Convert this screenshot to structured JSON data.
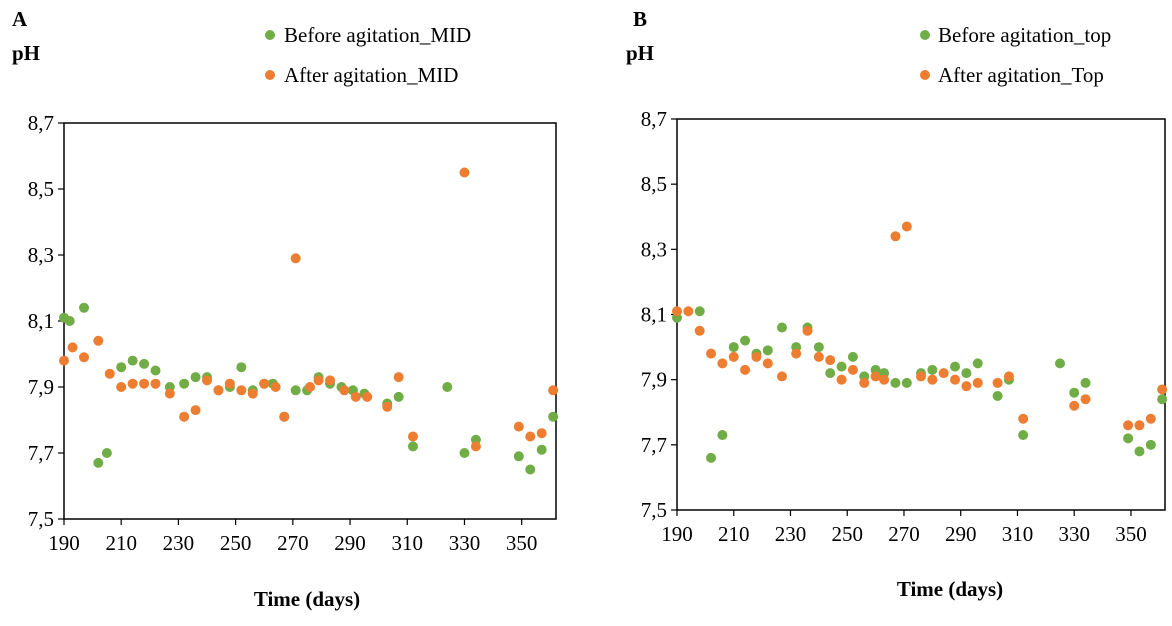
{
  "colors": {
    "series1": "#70AD47",
    "series2": "#ED7D31",
    "axis": "#000000"
  },
  "chart_data": [
    {
      "type": "scatter",
      "panel": "A",
      "ylabel": "pH",
      "xlabel": "Time (days)",
      "xlim": [
        190,
        362
      ],
      "ylim": [
        7.5,
        8.7
      ],
      "xticks": [
        "190",
        "210",
        "230",
        "250",
        "270",
        "290",
        "310",
        "330",
        "350"
      ],
      "yticks": [
        "7,5",
        "7,7",
        "7,9",
        "8,1",
        "8,3",
        "8,5",
        "8,7"
      ],
      "legend_position": "top-right",
      "series": [
        {
          "name": "Before agitation_MID",
          "x": [
            190,
            192,
            197,
            202,
            205,
            210,
            214,
            218,
            222,
            227,
            232,
            236,
            240,
            244,
            248,
            252,
            256,
            260,
            263,
            267,
            271,
            275,
            279,
            283,
            287,
            291,
            295,
            303,
            307,
            312,
            324,
            330,
            334,
            349,
            353,
            357,
            361
          ],
          "y": [
            8.11,
            8.1,
            8.14,
            7.67,
            7.7,
            7.96,
            7.98,
            7.97,
            7.95,
            7.9,
            7.91,
            7.93,
            7.93,
            7.89,
            7.9,
            7.96,
            7.89,
            7.91,
            7.91,
            7.81,
            7.89,
            7.89,
            7.93,
            7.91,
            7.9,
            7.89,
            7.88,
            7.85,
            7.87,
            7.72,
            7.9,
            7.7,
            7.74,
            7.69,
            7.65,
            7.71,
            7.81
          ]
        },
        {
          "name": "After agitation_MID",
          "x": [
            190,
            193,
            197,
            202,
            206,
            210,
            214,
            218,
            222,
            227,
            232,
            236,
            240,
            244,
            248,
            252,
            256,
            260,
            264,
            267,
            271,
            276,
            279,
            283,
            288,
            292,
            296,
            303,
            307,
            312,
            330,
            334,
            349,
            353,
            357,
            361
          ],
          "y": [
            7.98,
            8.02,
            7.99,
            8.04,
            7.94,
            7.9,
            7.91,
            7.91,
            7.91,
            7.88,
            7.81,
            7.83,
            7.92,
            7.89,
            7.91,
            7.89,
            7.88,
            7.91,
            7.9,
            7.81,
            8.29,
            7.9,
            7.92,
            7.92,
            7.89,
            7.87,
            7.87,
            7.84,
            7.93,
            7.75,
            8.55,
            7.72,
            7.78,
            7.75,
            7.76,
            7.89
          ]
        }
      ]
    },
    {
      "type": "scatter",
      "panel": "B",
      "ylabel": "pH",
      "xlabel": "Time (days)",
      "xlim": [
        190,
        362
      ],
      "ylim": [
        7.5,
        8.7
      ],
      "xticks": [
        "190",
        "210",
        "230",
        "250",
        "270",
        "290",
        "310",
        "330",
        "350"
      ],
      "yticks": [
        "7,5",
        "7,7",
        "7,9",
        "8,1",
        "8,3",
        "8,5",
        "8,7"
      ],
      "legend_position": "top-right",
      "series": [
        {
          "name": "Before agitation_top",
          "x": [
            190,
            198,
            202,
            206,
            210,
            214,
            218,
            222,
            227,
            232,
            236,
            240,
            244,
            248,
            252,
            256,
            260,
            263,
            267,
            271,
            276,
            280,
            288,
            292,
            296,
            303,
            307,
            312,
            325,
            330,
            334,
            349,
            353,
            357,
            361
          ],
          "y": [
            8.09,
            8.11,
            7.66,
            7.73,
            8.0,
            8.02,
            7.98,
            7.99,
            8.06,
            8.0,
            8.06,
            8.0,
            7.92,
            7.94,
            7.97,
            7.91,
            7.93,
            7.92,
            7.89,
            7.89,
            7.92,
            7.93,
            7.94,
            7.92,
            7.95,
            7.85,
            7.9,
            7.73,
            7.95,
            7.86,
            7.89,
            7.72,
            7.68,
            7.7,
            7.84
          ]
        },
        {
          "name": "After agitation_Top",
          "x": [
            190,
            194,
            198,
            202,
            206,
            210,
            214,
            218,
            222,
            227,
            232,
            236,
            240,
            244,
            248,
            252,
            256,
            260,
            263,
            267,
            271,
            276,
            280,
            284,
            288,
            292,
            296,
            303,
            307,
            312,
            330,
            334,
            349,
            353,
            357,
            361
          ],
          "y": [
            8.11,
            8.11,
            8.05,
            7.98,
            7.95,
            7.97,
            7.93,
            7.97,
            7.95,
            7.91,
            7.98,
            8.05,
            7.97,
            7.96,
            7.9,
            7.93,
            7.89,
            7.91,
            7.9,
            8.34,
            8.37,
            7.91,
            7.9,
            7.92,
            7.9,
            7.88,
            7.89,
            7.89,
            7.91,
            7.78,
            7.82,
            7.84,
            7.76,
            7.76,
            7.78,
            7.87
          ]
        }
      ]
    }
  ]
}
